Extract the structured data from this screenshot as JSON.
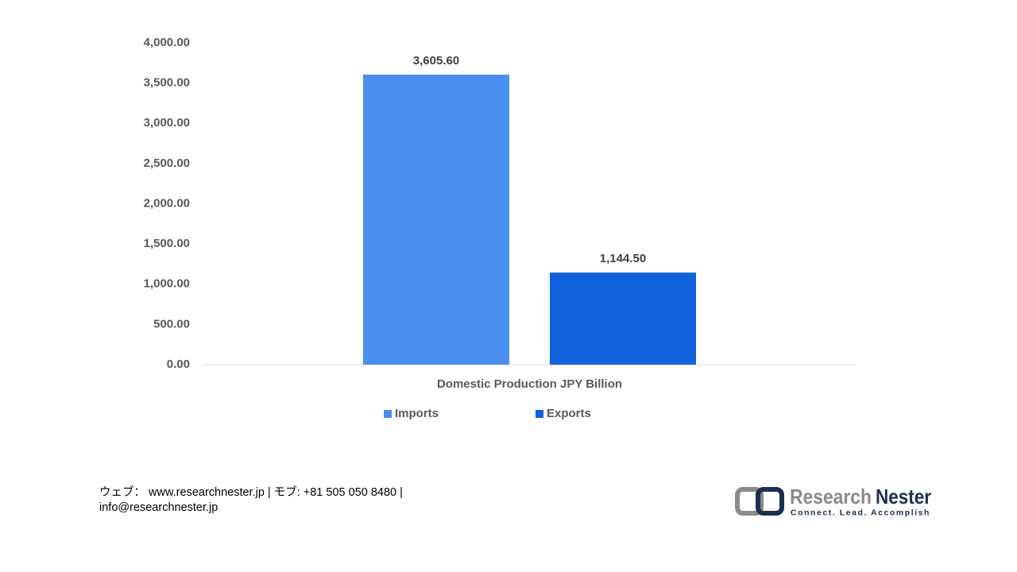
{
  "chart_data": {
    "type": "bar",
    "categories": [
      "Domestic Production JPY Billion"
    ],
    "series": [
      {
        "name": "Imports",
        "color": "#4a8ef0",
        "values": [
          3605.6
        ],
        "value_labels": [
          "3,605.60"
        ]
      },
      {
        "name": "Exports",
        "color": "#1162dc",
        "values": [
          1144.5
        ],
        "value_labels": [
          "1,144.50"
        ]
      }
    ],
    "ylim": [
      0,
      4000
    ],
    "yticks": [
      {
        "value": 0,
        "label": "0.00"
      },
      {
        "value": 500,
        "label": "500.00"
      },
      {
        "value": 1000,
        "label": "1,000.00"
      },
      {
        "value": 1500,
        "label": "1,500.00"
      },
      {
        "value": 2000,
        "label": "2,000.00"
      },
      {
        "value": 2500,
        "label": "2,500.00"
      },
      {
        "value": 3000,
        "label": "3,000.00"
      },
      {
        "value": 3500,
        "label": "3,500.00"
      },
      {
        "value": 4000,
        "label": "4,000.00"
      }
    ],
    "grid": false,
    "legend": "bottom"
  },
  "footer": {
    "line1": "ウェブ：  www.researchnester.jp  | モブ: +81 505 050 8480 |",
    "line2": "info@researchnester.jp"
  },
  "logo": {
    "name_part1": "Research",
    "name_part2": "Nester",
    "tagline": "Connect. Lead. Accomplish"
  }
}
